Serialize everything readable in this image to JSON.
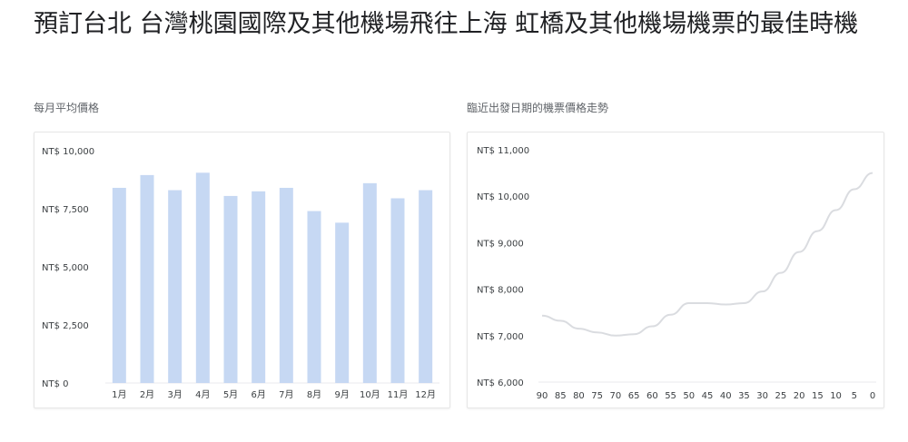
{
  "page": {
    "title": "預訂台北 台灣桃園國際及其他機場飛往上海 虹橋及其他機場機票的最佳時機"
  },
  "charts": {
    "monthly_label": "每月平均價格",
    "trend_label": "臨近出發日期的機票價格走勢"
  },
  "colors": {
    "bar": "#c6d8f3",
    "line": "#dadce0",
    "axis": "#e8eaed"
  },
  "chart_data": [
    {
      "type": "bar",
      "title": "每月平均價格",
      "categories": [
        "1月",
        "2月",
        "3月",
        "4月",
        "5月",
        "6月",
        "7月",
        "8月",
        "9月",
        "10月",
        "11月",
        "12月"
      ],
      "values": [
        8400,
        8950,
        8300,
        9050,
        8050,
        8250,
        8400,
        7400,
        6900,
        8600,
        7950,
        8300
      ],
      "ylim": [
        0,
        10000
      ],
      "yticks": [
        0,
        2500,
        5000,
        7500,
        10000
      ],
      "ytick_labels": [
        "NT$ 0",
        "NT$ 2,500",
        "NT$ 5,000",
        "NT$ 7,500",
        "NT$ 10,000"
      ],
      "xlabel": "",
      "ylabel": ""
    },
    {
      "type": "line",
      "title": "臨近出發日期的機票價格走勢",
      "x": [
        90,
        85,
        80,
        75,
        70,
        65,
        60,
        55,
        50,
        45,
        40,
        35,
        30,
        25,
        20,
        15,
        10,
        5,
        0
      ],
      "values": [
        7430,
        7320,
        7150,
        7070,
        7000,
        7030,
        7200,
        7450,
        7700,
        7700,
        7670,
        7700,
        7950,
        8350,
        8800,
        9250,
        9700,
        10150,
        10500
      ],
      "xticks": [
        90,
        85,
        80,
        75,
        70,
        65,
        60,
        55,
        50,
        45,
        40,
        35,
        30,
        25,
        20,
        15,
        10,
        5,
        0
      ],
      "xtick_labels": [
        "90",
        "85",
        "80",
        "75",
        "70",
        "65",
        "60",
        "55",
        "50",
        "45",
        "40",
        "35",
        "30",
        "25",
        "20",
        "15",
        "10",
        "5",
        "0"
      ],
      "ylim": [
        6000,
        11000
      ],
      "yticks": [
        6000,
        7000,
        8000,
        9000,
        10000,
        11000
      ],
      "ytick_labels": [
        "NT$ 6,000",
        "NT$ 7,000",
        "NT$ 8,000",
        "NT$ 9,000",
        "NT$ 10,000",
        "NT$ 11,000"
      ],
      "xlabel": "",
      "ylabel": ""
    }
  ]
}
